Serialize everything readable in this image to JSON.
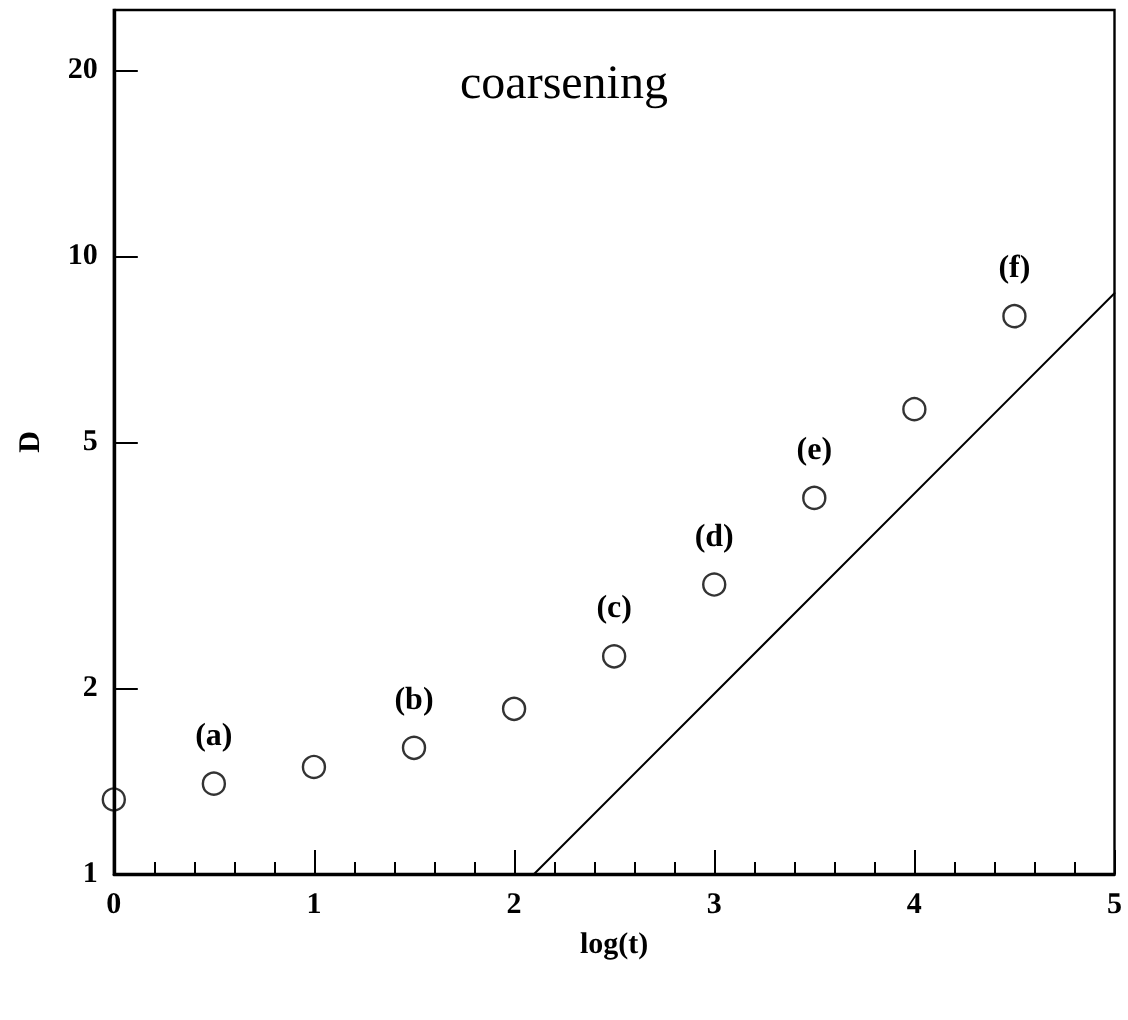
{
  "chart_data": {
    "type": "scatter",
    "xlabel": "log(t)",
    "ylabel": "D",
    "log": "y",
    "marker": "circle",
    "grid": false,
    "xlim": [
      0,
      5
    ],
    "xticks": [
      0,
      1,
      2,
      3,
      4,
      5
    ],
    "ylim": [
      1,
      25
    ],
    "yticks": [
      1,
      2,
      5,
      10,
      20
    ],
    "series": [
      {
        "color": "#000000",
        "x": [
          0,
          0.5,
          1,
          1.5,
          2,
          2.5,
          3,
          3.5,
          4,
          4.5
        ],
        "values": [
          1.32,
          1.4,
          1.49,
          1.6,
          1.85,
          2.25,
          2.94,
          4.06,
          5.65,
          7.99
        ]
      },
      {
        "type": "line",
        "color": "#000000",
        "marker": "none",
        "line_style": "solid",
        "x": [
          2.1,
          5
        ],
        "values": [
          1,
          8.7
        ]
      }
    ],
    "annotations": [
      "coarsening",
      {
        "text": "(a)",
        "x": 0.5,
        "y": 1.4
      },
      {
        "text": "(b)",
        "x": 1.5,
        "y": 1.6
      },
      {
        "text": "(c)",
        "x": 2.5,
        "y": 2.25
      },
      {
        "text": "(d)",
        "x": 3,
        "y": 2.94
      },
      {
        "text": "(e)",
        "x": 3.5,
        "y": 4.06
      },
      {
        "text": "(f)",
        "x": 4.5,
        "y": 7.99
      }
    ]
  }
}
